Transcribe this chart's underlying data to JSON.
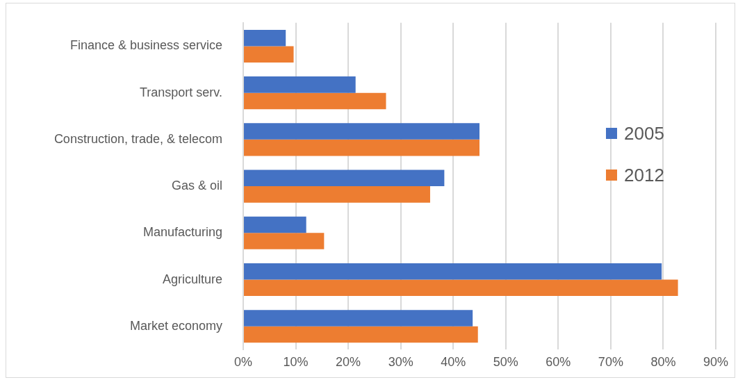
{
  "chart_data": {
    "type": "bar",
    "orientation": "horizontal",
    "categories": [
      "Finance & business service",
      "Transport serv.",
      "Construction, trade, & telecom",
      "Gas & oil",
      "Manufacturing",
      "Agriculture",
      "Market economy"
    ],
    "series": [
      {
        "name": "2005",
        "color": "#4472c4",
        "values": [
          8.1,
          21.4,
          45.0,
          38.3,
          12.0,
          79.7,
          43.7
        ]
      },
      {
        "name": "2012",
        "color": "#ed7d31",
        "values": [
          9.6,
          27.2,
          45.0,
          35.6,
          15.4,
          82.8,
          44.7
        ]
      }
    ],
    "xlim": [
      0,
      90
    ],
    "xticks": [
      {
        "value": 0,
        "label": "0%"
      },
      {
        "value": 10,
        "label": "10%"
      },
      {
        "value": 20,
        "label": "20%"
      },
      {
        "value": 30,
        "label": "30%"
      },
      {
        "value": 40,
        "label": "40%"
      },
      {
        "value": 50,
        "label": "50%"
      },
      {
        "value": 60,
        "label": "60%"
      },
      {
        "value": 70,
        "label": "70%"
      },
      {
        "value": 80,
        "label": "80%"
      },
      {
        "value": 90,
        "label": "90%"
      }
    ],
    "grid": "x",
    "legend": "right"
  }
}
